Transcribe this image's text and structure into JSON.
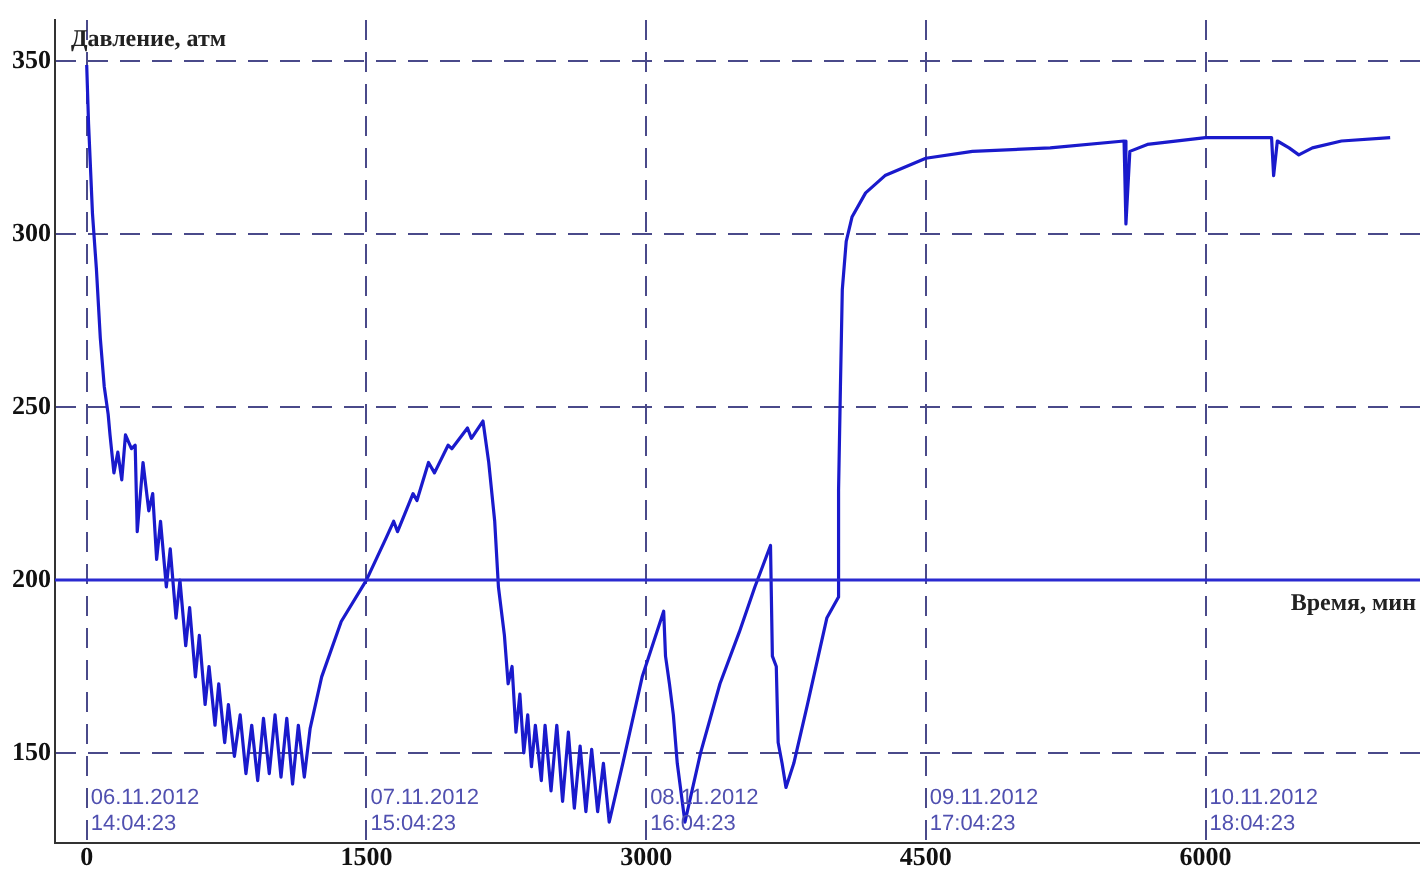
{
  "chart_data": {
    "type": "line",
    "xlabel": "Время, мин",
    "ylabel": "Давление, атм",
    "x": [
      0,
      10,
      31,
      52,
      73,
      94,
      115,
      125,
      146,
      167,
      188,
      208,
      240,
      260,
      271,
      302,
      333,
      354,
      375,
      396,
      427,
      448,
      479,
      500,
      531,
      552,
      583,
      604,
      635,
      656,
      688,
      708,
      740,
      760,
      792,
      823,
      854,
      885,
      917,
      948,
      979,
      1010,
      1042,
      1073,
      1104,
      1135,
      1167,
      1198,
      1260,
      1365,
      1500,
      1604,
      1646,
      1667,
      1750,
      1771,
      1833,
      1865,
      1938,
      1958,
      2042,
      2063,
      2125,
      2156,
      2188,
      2208,
      2240,
      2260,
      2281,
      2302,
      2323,
      2344,
      2365,
      2385,
      2406,
      2438,
      2458,
      2490,
      2521,
      2552,
      2583,
      2615,
      2646,
      2677,
      2708,
      2740,
      2771,
      2802,
      2875,
      2979,
      3094,
      3104,
      3125,
      3146,
      3167,
      3208,
      3292,
      3396,
      3500,
      3583,
      3667,
      3677,
      3698,
      3708,
      3729,
      3750,
      3792,
      3865,
      3969,
      4031,
      4032,
      4042,
      4052,
      4073,
      4104,
      4177,
      4281,
      4500,
      4750,
      5167,
      5563,
      5573,
      5594,
      5688,
      6000,
      6354,
      6365,
      6385,
      6448,
      6500,
      6573,
      6729,
      6990
    ],
    "series": [
      {
        "color": "#1a1acc",
        "values": [
          349,
          332,
          306,
          290,
          270,
          256,
          248,
          242,
          231,
          237,
          229,
          242,
          238,
          239,
          214,
          234,
          220,
          225,
          206,
          217,
          198,
          209,
          189,
          200,
          181,
          192,
          172,
          184,
          164,
          175,
          158,
          170,
          153,
          164,
          149,
          161,
          144,
          158,
          142,
          160,
          144,
          161,
          143,
          160,
          141,
          158,
          143,
          157,
          172,
          188,
          200,
          212,
          217,
          214,
          225,
          223,
          234,
          231,
          239,
          238,
          244,
          241,
          246,
          234,
          217,
          198,
          184,
          170,
          175,
          156,
          167,
          150,
          161,
          146,
          158,
          142,
          158,
          139,
          158,
          136,
          156,
          134,
          152,
          133,
          151,
          133,
          147,
          130,
          147,
          172,
          191,
          178,
          170,
          161,
          147,
          130,
          150,
          170,
          185,
          198,
          210,
          178,
          175,
          153,
          147,
          140,
          147,
          164,
          189,
          195,
          226,
          256,
          284,
          298,
          305,
          312,
          317,
          322,
          324,
          325,
          327,
          303,
          324,
          326,
          328,
          328,
          317,
          327,
          325,
          323,
          325,
          327,
          328
        ]
      }
    ],
    "xlim": [
      -170,
      7150
    ],
    "ylim": [
      124,
      362
    ],
    "xticks": [
      0,
      1500,
      3000,
      4500,
      6000
    ],
    "annotations": [
      "06.11.2012\n14:04:23",
      "07.11.2012\n15:04:23",
      "08.11.2012\n16:04:23",
      "09.11.2012\n17:04:23",
      "10.11.2012\n18:04:23"
    ],
    "yticks": [
      150,
      200,
      250,
      300,
      350
    ],
    "grid": true,
    "legend": false,
    "marker": "none",
    "line_style": "solid",
    "ref_lines": [
      {
        "axis": "y",
        "value": 200,
        "color": "#2a2ad0",
        "line_style": "solid"
      }
    ]
  }
}
